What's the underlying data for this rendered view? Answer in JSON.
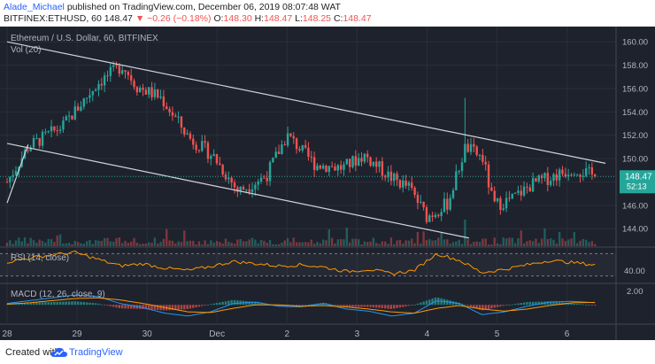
{
  "header": {
    "author": "Alade_Michael",
    "published_text": "published on TradingView.com, December 06, 2019 08:07:48 WAT",
    "symbol": "BITFINEX:ETHUSD, 60",
    "last_price": "148.47",
    "change_text": "▼ −0.26 (−0.18%)",
    "o_label": "O:",
    "o_value": "148.30",
    "h_label": "H:",
    "h_value": "148.47",
    "l_label": "L:",
    "l_value": "148.25",
    "c_label": "C:",
    "c_value": "148.47"
  },
  "legend": {
    "main": "Ethereum / U.S. Dollar, 60, BITFINEX",
    "vol": "Vol (20)",
    "rsi": "RSI (14, close)",
    "macd": "MACD (12, 26, close, 9)"
  },
  "price_badge": {
    "price": "148.47",
    "countdown": "52:13"
  },
  "footer": {
    "created": "Created with",
    "brand": "TradingView"
  },
  "colors": {
    "background": "#1e222d",
    "up": "#26a69a",
    "down": "#ef5350",
    "channel": "#d1d4dc",
    "rsi": "#ff9800",
    "macd": "#2196f3",
    "signal": "#ff9800",
    "accent": "#2962ff"
  },
  "chart_data": [
    {
      "type": "candlestick",
      "title": "Ethereum / U.S. Dollar, 60, BITFINEX",
      "x_ticks": [
        "28",
        "29",
        "30",
        "Dec",
        "2",
        "3",
        "4",
        "5",
        "6"
      ],
      "y_ticks": [
        144.0,
        146.0,
        148.0,
        150.0,
        152.0,
        154.0,
        156.0,
        158.0,
        160.0
      ],
      "ylim": [
        142.5,
        161.0
      ],
      "grid": true,
      "close_anchors": [
        {
          "x": 0.0,
          "close": 148.0
        },
        {
          "x": 0.3,
          "close": 151.0
        },
        {
          "x": 0.8,
          "close": 152.8
        },
        {
          "x": 1.3,
          "close": 156.5
        },
        {
          "x": 1.65,
          "close": 158.0
        },
        {
          "x": 1.85,
          "close": 156.2
        },
        {
          "x": 2.2,
          "close": 155.2
        },
        {
          "x": 2.6,
          "close": 151.8
        },
        {
          "x": 2.95,
          "close": 150.2
        },
        {
          "x": 3.3,
          "close": 147.2
        },
        {
          "x": 3.7,
          "close": 148.5
        },
        {
          "x": 4.0,
          "close": 152.0
        },
        {
          "x": 4.4,
          "close": 149.5
        },
        {
          "x": 4.8,
          "close": 149.2
        },
        {
          "x": 5.1,
          "close": 150.3
        },
        {
          "x": 5.5,
          "close": 148.3
        },
        {
          "x": 5.75,
          "close": 147.5
        },
        {
          "x": 6.0,
          "close": 145.0
        },
        {
          "x": 6.3,
          "close": 146.2
        },
        {
          "x": 6.55,
          "close": 151.0
        },
        {
          "x": 6.8,
          "close": 150.0
        },
        {
          "x": 6.95,
          "close": 146.0
        },
        {
          "x": 7.2,
          "close": 146.5
        },
        {
          "x": 7.5,
          "close": 147.8
        },
        {
          "x": 7.85,
          "close": 148.6
        },
        {
          "x": 8.1,
          "close": 149.2
        },
        {
          "x": 8.4,
          "close": 148.47
        }
      ],
      "spike": {
        "x": 6.55,
        "high": 155.2
      },
      "channel_upper": {
        "start": [
          0.0,
          160.0
        ],
        "end": [
          8.55,
          149.6
        ]
      },
      "channel_lower": {
        "start": [
          0.0,
          151.3
        ],
        "end": [
          6.6,
          143.2
        ]
      },
      "last_price": 148.47,
      "volume": {
        "label": "Vol (20)",
        "spike_x": 6.55
      }
    },
    {
      "type": "line",
      "title": "RSI (14, close)",
      "y_ticks": [
        40.0
      ],
      "ylim": [
        20,
        80
      ],
      "band": [
        30,
        70
      ],
      "series": [
        {
          "name": "RSI (14, close)",
          "values_approx": [
            55,
            62,
            68,
            72,
            60,
            48,
            52,
            44,
            40,
            47,
            56,
            52,
            48,
            50,
            46,
            38,
            42,
            34,
            40,
            70,
            58,
            36,
            42,
            50,
            58,
            54,
            50
          ]
        }
      ]
    },
    {
      "type": "line",
      "title": "MACD (12, 26, close, 9)",
      "y_ticks": [
        2.0
      ],
      "ylim": [
        -2.5,
        2.8
      ],
      "series": [
        {
          "name": "MACD",
          "values_approx": [
            0.2,
            0.6,
            1.0,
            1.4,
            1.2,
            0.2,
            -0.4,
            -1.2,
            -1.6,
            -1.0,
            0.2,
            0.4,
            -0.2,
            -0.3,
            0.2,
            -0.6,
            -0.9,
            -1.6,
            -1.2,
            0.6,
            0.2,
            -1.4,
            -1.0,
            -0.2,
            0.4,
            0.5,
            0.3
          ]
        },
        {
          "name": "Signal",
          "values_approx": [
            0.1,
            0.3,
            0.6,
            0.9,
            1.0,
            0.7,
            0.2,
            -0.4,
            -1.0,
            -1.1,
            -0.5,
            0.0,
            0.0,
            -0.2,
            -0.1,
            -0.3,
            -0.6,
            -1.0,
            -1.2,
            -0.5,
            -0.1,
            -0.6,
            -0.9,
            -0.6,
            -0.1,
            0.3,
            0.35
          ]
        }
      ]
    }
  ]
}
